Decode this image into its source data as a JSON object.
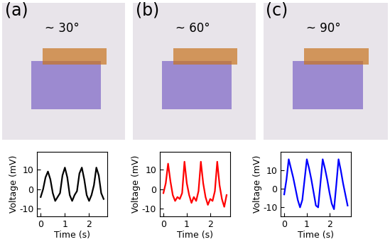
{
  "chart_data": [
    {
      "type": "line",
      "panel_label": "(a)",
      "annotation": "~ 30°",
      "x_label": "Time (s)",
      "y_label": "Voltage (mV)",
      "x": [
        0,
        0.1,
        0.2,
        0.3,
        0.4,
        0.5,
        0.6,
        0.7,
        0.8,
        0.9,
        1.0,
        1.1,
        1.2,
        1.3,
        1.4,
        1.5,
        1.6,
        1.7,
        1.8,
        1.9,
        2.0,
        2.1,
        2.2,
        2.3,
        2.4,
        2.5,
        2.6
      ],
      "values": [
        -4,
        0,
        6,
        9,
        5,
        -2,
        -6,
        -4,
        -2,
        7,
        11,
        6,
        -3,
        -6,
        -3,
        -1,
        8,
        11,
        5,
        -3,
        -6,
        -3,
        2,
        11,
        7,
        -2,
        -5
      ],
      "color": "#000000",
      "xlim": [
        -0.15,
        2.75
      ],
      "ylim": [
        -14,
        19
      ],
      "xticks": [
        0,
        1,
        2
      ],
      "yticks": [
        -10,
        0,
        10
      ]
    },
    {
      "type": "line",
      "panel_label": "(b)",
      "annotation": "~ 60°",
      "x_label": "Time (s)",
      "y_label": "Voltage (mV)",
      "x": [
        0,
        0.1,
        0.2,
        0.3,
        0.4,
        0.5,
        0.6,
        0.7,
        0.8,
        0.9,
        1.0,
        1.1,
        1.2,
        1.3,
        1.4,
        1.5,
        1.6,
        1.7,
        1.8,
        1.9,
        2.0,
        2.1,
        2.2,
        2.3,
        2.4,
        2.5,
        2.6,
        2.7
      ],
      "values": [
        -2,
        3,
        13,
        4,
        -3,
        -6,
        -4,
        -5,
        -2,
        14,
        3,
        -3,
        -7,
        -4,
        -6,
        -1,
        14,
        3,
        -4,
        -8,
        -5,
        -6,
        -1,
        14,
        2,
        -5,
        -9,
        -3
      ],
      "color": "#ff0000",
      "xlim": [
        -0.15,
        2.85
      ],
      "ylim": [
        -14,
        19
      ],
      "xticks": [
        0,
        1,
        2
      ],
      "yticks": [
        -10,
        0,
        10
      ]
    },
    {
      "type": "line",
      "panel_label": "(c)",
      "annotation": "~ 90°",
      "x_label": "Time (s)",
      "y_label": "Voltage (mV)",
      "x": [
        0,
        0.1,
        0.2,
        0.3,
        0.4,
        0.5,
        0.6,
        0.7,
        0.8,
        0.9,
        1.0,
        1.1,
        1.2,
        1.3,
        1.4,
        1.5,
        1.6,
        1.7,
        1.8,
        1.9,
        2.0,
        2.1,
        2.2,
        2.3,
        2.4,
        2.5,
        2.6,
        2.7,
        2.8
      ],
      "values": [
        -3,
        5,
        16,
        11,
        6,
        0,
        -6,
        -10,
        -6,
        5,
        16,
        11,
        5,
        -2,
        -9,
        -10,
        3,
        16,
        11,
        5,
        -2,
        -8,
        -11,
        2,
        16,
        10,
        3,
        -3,
        -9
      ],
      "color": "#0000ff",
      "xlim": [
        -0.15,
        2.95
      ],
      "ylim": [
        -15,
        20
      ],
      "xticks": [
        0,
        1,
        2
      ],
      "yticks": [
        -10,
        0,
        10
      ]
    }
  ]
}
